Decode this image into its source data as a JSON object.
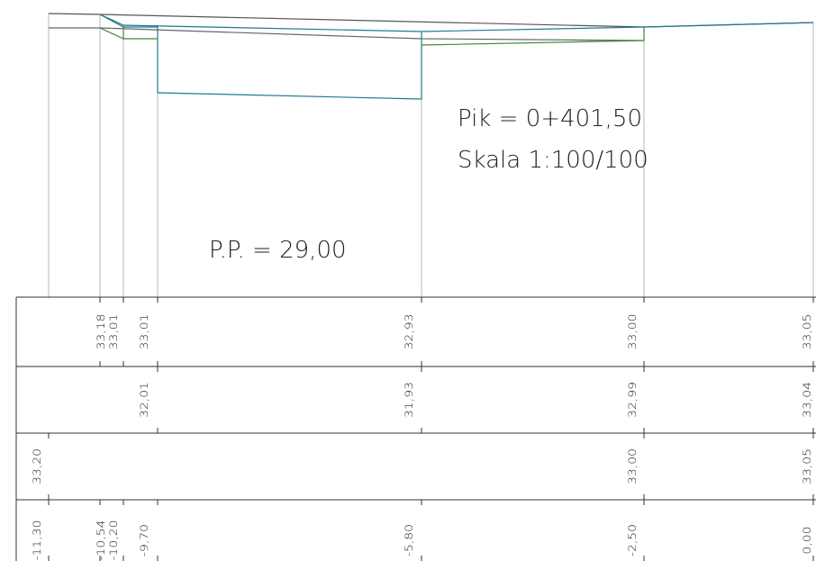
{
  "labels": {
    "station": "Pik = 0+401,50",
    "scale": "Skala 1:100/100",
    "datum": "P.P. = 29,00"
  },
  "table": {
    "rows": [
      [
        "33,18",
        "33,01",
        "33,01",
        "32,93",
        "33,00",
        "33,05"
      ],
      [
        "32,01",
        "31,93",
        "32,99",
        "33,04"
      ],
      [
        "33,20",
        "33,00",
        "33,05"
      ],
      [
        "-11,30",
        "-10,54",
        "-10,20",
        "-9,70",
        "-5,80",
        "-2,50",
        "0,00"
      ]
    ]
  }
}
